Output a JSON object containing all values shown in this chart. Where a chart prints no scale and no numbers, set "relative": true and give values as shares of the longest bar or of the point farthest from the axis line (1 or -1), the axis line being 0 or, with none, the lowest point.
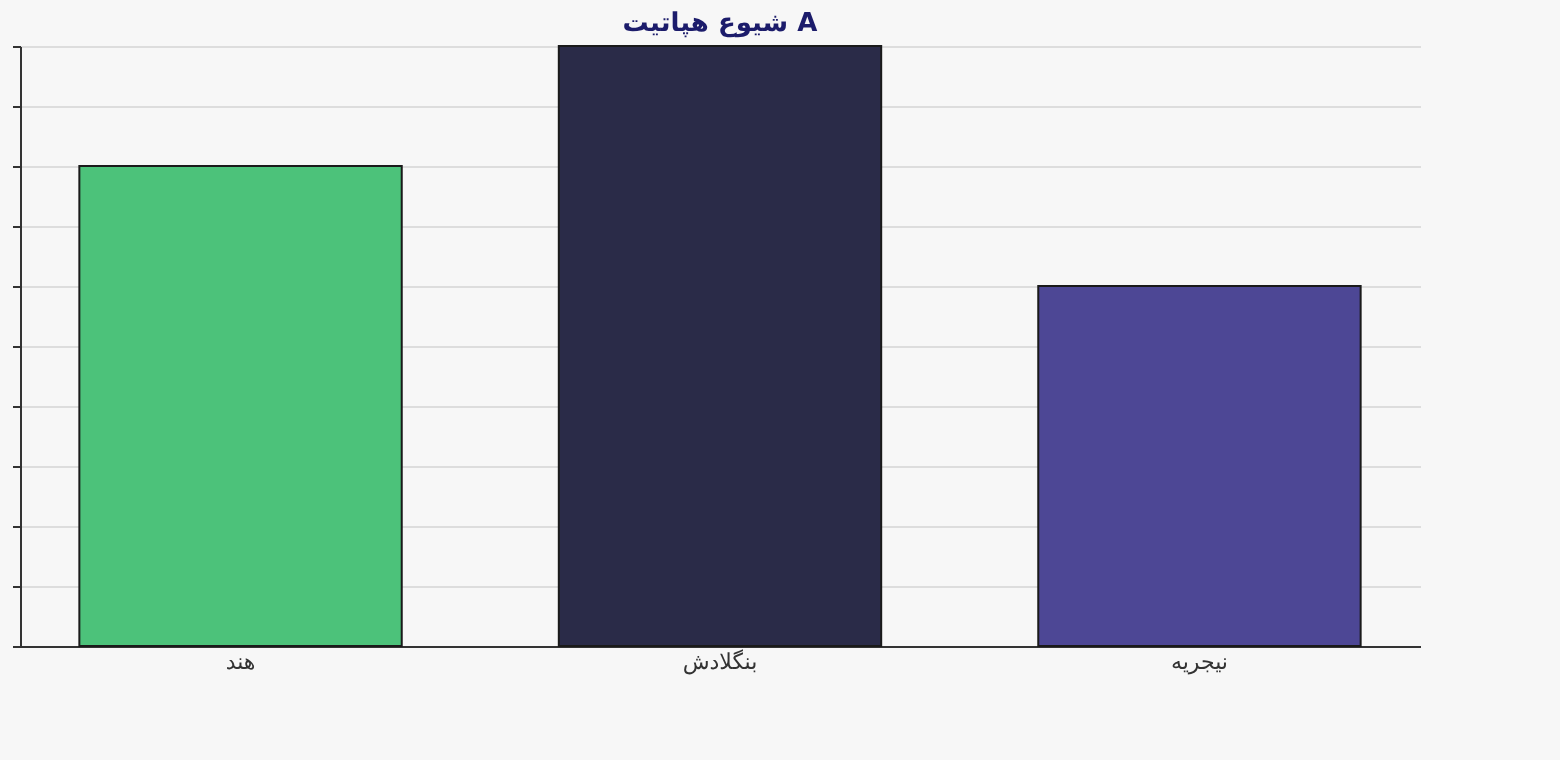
{
  "chart_data": {
    "type": "bar",
    "title": "شیوع هپاتیت A",
    "relative": true,
    "categories": [
      "هند",
      "بنگلادش",
      "نیجریه"
    ],
    "values": [
      0.8,
      1,
      0.6
    ],
    "colors": [
      "#4cc27a",
      "#2a2b48",
      "#4d4795"
    ],
    "grid": "y"
  }
}
